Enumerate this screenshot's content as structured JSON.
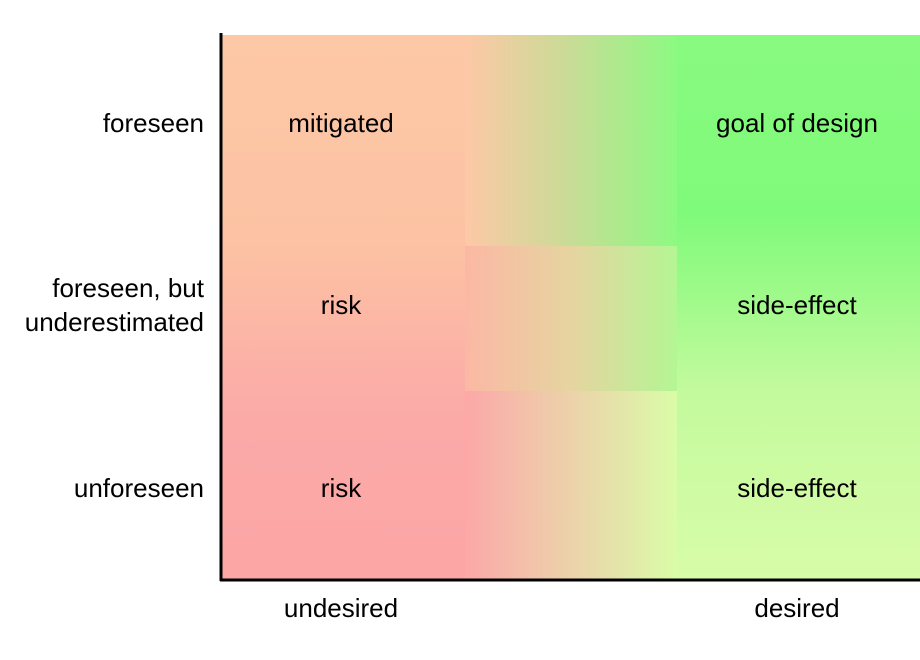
{
  "rows": [
    {
      "label_lines": [
        "foreseen"
      ]
    },
    {
      "label_lines": [
        "foreseen, but",
        "underestimated"
      ]
    },
    {
      "label_lines": [
        "unforeseen"
      ]
    }
  ],
  "columns": [
    "undesired",
    "desired"
  ],
  "cells": [
    [
      "mitigated",
      "goal of design"
    ],
    [
      "risk",
      "side-effect"
    ],
    [
      "risk",
      "side-effect"
    ]
  ]
}
